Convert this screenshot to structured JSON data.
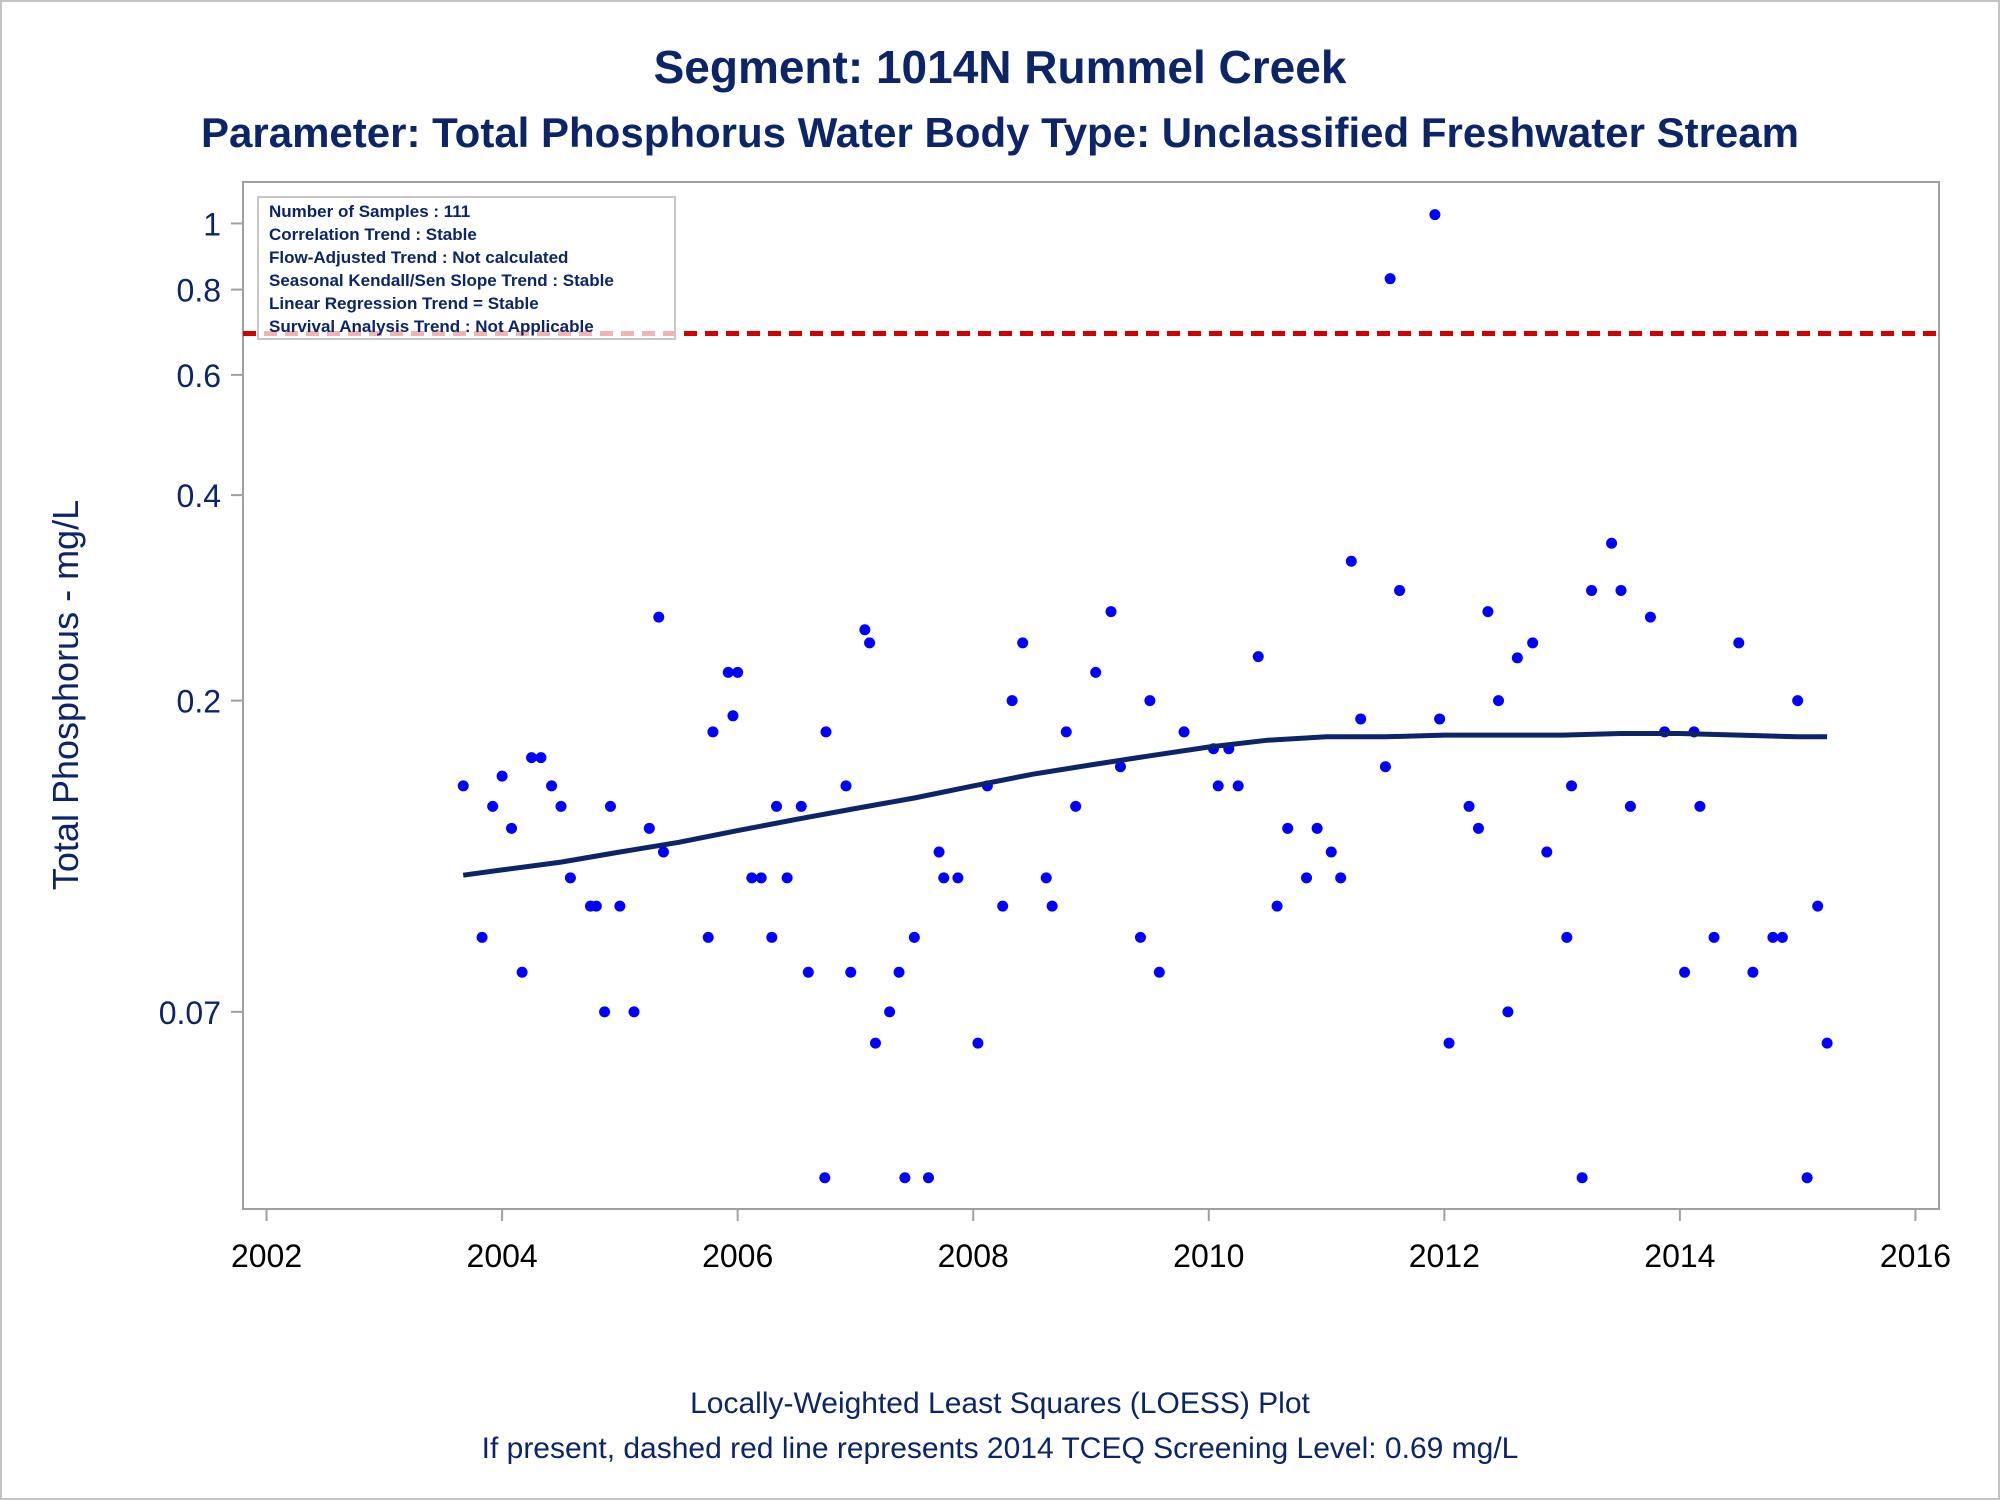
{
  "chart_data": {
    "type": "scatter",
    "title": "Segment: 1014N  Rummel Creek",
    "subtitle": "Parameter: Total Phosphorus   Water Body Type: Unclassified Freshwater Stream",
    "ylabel": "Total Phosphorus - mg/L",
    "xlabel": "",
    "y_scale": "log",
    "xlim": [
      2001.8,
      2016.2
    ],
    "ylim": [
      0.036,
      1.15
    ],
    "x_ticks": [
      2002,
      2004,
      2006,
      2008,
      2010,
      2012,
      2014,
      2016
    ],
    "y_ticks": [
      0.07,
      0.2,
      0.4,
      0.6,
      0.8,
      1
    ],
    "y_tick_labels": [
      "0.07",
      "0.2",
      "0.4",
      "0.6",
      "0.8",
      "1"
    ],
    "x_tick_labels": [
      "2002",
      "2004",
      "2006",
      "2008",
      "2010",
      "2012",
      "2014",
      "2016"
    ],
    "grid": false,
    "stats_box": {
      "position": "top-left",
      "lines": [
        "Number of Samples : 111",
        "Correlation Trend : Stable",
        "Flow-Adjusted Trend : Not calculated",
        "Seasonal Kendall/Sen Slope Trend : Stable",
        "Linear Regression Trend = Stable",
        "Survival Analysis Trend : Not Applicable"
      ]
    },
    "screening_level": {
      "value": 0.69,
      "style": "dashed",
      "color": "#d40000"
    },
    "loess": {
      "color": "#0c2568",
      "x": [
        2003.67,
        2004.0,
        2004.5,
        2005.0,
        2005.5,
        2006.0,
        2006.5,
        2007.0,
        2007.5,
        2008.0,
        2008.5,
        2009.0,
        2009.5,
        2010.0,
        2010.5,
        2011.0,
        2011.5,
        2012.0,
        2012.5,
        2013.0,
        2013.5,
        2014.0,
        2014.5,
        2015.0,
        2015.25
      ],
      "y": [
        0.111,
        0.113,
        0.116,
        0.12,
        0.124,
        0.129,
        0.134,
        0.139,
        0.144,
        0.15,
        0.156,
        0.161,
        0.166,
        0.171,
        0.175,
        0.177,
        0.177,
        0.178,
        0.178,
        0.178,
        0.179,
        0.179,
        0.178,
        0.177,
        0.177
      ]
    },
    "series": [
      {
        "color": "#0000ff",
        "x": [
          2003.67,
          2003.83,
          2003.92,
          2004.0,
          2004.08,
          2004.17,
          2004.25,
          2004.33,
          2004.42,
          2004.5,
          2004.58,
          2004.75,
          2004.8,
          2004.87,
          2004.92,
          2005.0,
          2005.12,
          2005.25,
          2005.33,
          2005.37,
          2005.75,
          2005.79,
          2005.92,
          2005.96,
          2006.0,
          2006.12,
          2006.2,
          2006.29,
          2006.33,
          2006.42,
          2006.54,
          2006.6,
          2006.74,
          2006.75,
          2006.92,
          2006.96,
          2007.08,
          2007.12,
          2007.17,
          2007.29,
          2007.37,
          2007.42,
          2007.5,
          2007.62,
          2007.71,
          2007.75,
          2007.87,
          2008.04,
          2008.12,
          2008.25,
          2008.33,
          2008.42,
          2008.62,
          2008.67,
          2008.79,
          2008.87,
          2009.04,
          2009.17,
          2009.25,
          2009.42,
          2009.5,
          2009.58,
          2009.79,
          2010.04,
          2010.08,
          2010.17,
          2010.25,
          2010.42,
          2010.58,
          2010.67,
          2010.83,
          2010.92,
          2011.04,
          2011.12,
          2011.21,
          2011.29,
          2011.5,
          2011.54,
          2011.62,
          2011.92,
          2011.96,
          2012.04,
          2012.21,
          2012.29,
          2012.37,
          2012.46,
          2012.54,
          2012.62,
          2012.75,
          2012.87,
          2013.04,
          2013.08,
          2013.17,
          2013.25,
          2013.42,
          2013.5,
          2013.58,
          2013.75,
          2013.87,
          2014.04,
          2014.12,
          2014.17,
          2014.29,
          2014.5,
          2014.62,
          2014.79,
          2014.87,
          2015.0,
          2015.08,
          2015.17,
          2015.25
        ],
        "y": [
          0.15,
          0.09,
          0.14,
          0.155,
          0.13,
          0.08,
          0.165,
          0.165,
          0.15,
          0.14,
          0.11,
          0.1,
          0.1,
          0.07,
          0.14,
          0.1,
          0.07,
          0.13,
          0.265,
          0.12,
          0.09,
          0.18,
          0.22,
          0.19,
          0.22,
          0.11,
          0.11,
          0.09,
          0.14,
          0.11,
          0.14,
          0.08,
          0.04,
          0.18,
          0.15,
          0.08,
          0.254,
          0.243,
          0.063,
          0.07,
          0.08,
          0.04,
          0.09,
          0.04,
          0.12,
          0.11,
          0.11,
          0.063,
          0.15,
          0.1,
          0.2,
          0.243,
          0.11,
          0.1,
          0.18,
          0.14,
          0.22,
          0.27,
          0.16,
          0.09,
          0.2,
          0.08,
          0.18,
          0.17,
          0.15,
          0.17,
          0.15,
          0.232,
          0.1,
          0.13,
          0.11,
          0.13,
          0.12,
          0.11,
          0.32,
          0.188,
          0.16,
          0.83,
          0.29,
          1.03,
          0.188,
          0.063,
          0.14,
          0.13,
          0.27,
          0.2,
          0.07,
          0.231,
          0.243,
          0.12,
          0.09,
          0.15,
          0.04,
          0.29,
          0.34,
          0.29,
          0.14,
          0.265,
          0.18,
          0.08,
          0.18,
          0.14,
          0.09,
          0.243,
          0.08,
          0.09,
          0.09,
          0.2,
          0.04,
          0.1,
          0.063
        ]
      }
    ],
    "footnotes": [
      "Locally-Weighted Least Squares (LOESS) Plot",
      "If present, dashed red line represents 2014 TCEQ Screening Level: 0.69 mg/L"
    ]
  }
}
